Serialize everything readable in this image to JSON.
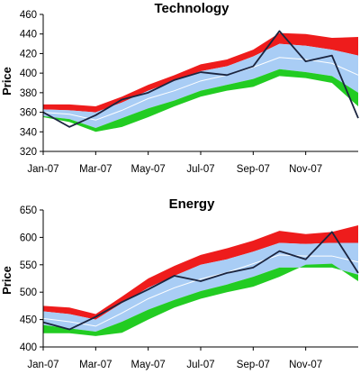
{
  "colors": {
    "upper_band": "#ee1c1c",
    "middle_band": "#a9cdf5",
    "lower_band": "#22cc22",
    "mean_line": "#ffffff",
    "price_line": "#1b2540"
  },
  "chart_data": [
    {
      "type": "area",
      "title": "Technology",
      "ylabel": "Price",
      "xlabel": "",
      "x_ticks": [
        "Jan-07",
        "Mar-07",
        "May-07",
        "Jul-07",
        "Sep-07",
        "Nov-07"
      ],
      "y_ticks": [
        "320",
        "340",
        "360",
        "380",
        "400",
        "420",
        "440",
        "460"
      ],
      "ylim": [
        320,
        460
      ],
      "x": [
        0,
        1,
        2,
        3,
        4,
        5,
        6,
        7,
        8,
        9,
        10,
        11,
        12
      ],
      "series": [
        {
          "values": [
            368,
            368,
            366,
            376,
            388,
            398,
            409,
            414,
            424,
            441,
            440,
            436,
            437
          ]
        },
        {
          "values": [
            363,
            362,
            360,
            370,
            382,
            392,
            402,
            407,
            417,
            430,
            428,
            424,
            418
          ]
        },
        {
          "values": [
            360,
            358,
            352,
            362,
            374,
            382,
            392,
            398,
            406,
            416,
            414,
            410,
            398
          ]
        },
        {
          "values": [
            356,
            353,
            344,
            354,
            364,
            372,
            382,
            388,
            394,
            404,
            401,
            397,
            380
          ]
        },
        {
          "values": [
            355,
            350,
            340,
            345,
            355,
            366,
            376,
            382,
            386,
            397,
            395,
            390,
            366
          ]
        },
        {
          "values": [
            360,
            345,
            357,
            373,
            380,
            393,
            401,
            398,
            407,
            443,
            412,
            418,
            354
          ]
        }
      ]
    },
    {
      "type": "area",
      "title": "Energy",
      "ylabel": "Price",
      "xlabel": "",
      "x_ticks": [
        "Jan-07",
        "Mar-07",
        "May-07",
        "Jul-07",
        "Sep-07",
        "Nov-07"
      ],
      "y_ticks": [
        "400",
        "450",
        "500",
        "550",
        "600",
        "650"
      ],
      "ylim": [
        400,
        650
      ],
      "x": [
        0,
        1,
        2,
        3,
        4,
        5,
        6,
        7,
        8,
        9,
        10,
        11,
        12
      ],
      "series": [
        {
          "values": [
            475,
            472,
            460,
            492,
            525,
            548,
            568,
            580,
            594,
            612,
            606,
            610,
            622
          ]
        },
        {
          "values": [
            465,
            460,
            450,
            480,
            508,
            530,
            550,
            560,
            574,
            590,
            588,
            590,
            590
          ]
        },
        {
          "values": [
            452,
            446,
            438,
            462,
            488,
            508,
            524,
            536,
            552,
            568,
            566,
            566,
            555
          ]
        },
        {
          "values": [
            440,
            434,
            428,
            446,
            468,
            486,
            502,
            514,
            528,
            545,
            545,
            545,
            532
          ]
        },
        {
          "values": [
            425,
            425,
            420,
            426,
            450,
            472,
            488,
            500,
            510,
            528,
            550,
            552,
            520
          ]
        },
        {
          "values": [
            445,
            432,
            455,
            482,
            505,
            530,
            520,
            535,
            545,
            575,
            560,
            610,
            535
          ]
        }
      ]
    }
  ]
}
